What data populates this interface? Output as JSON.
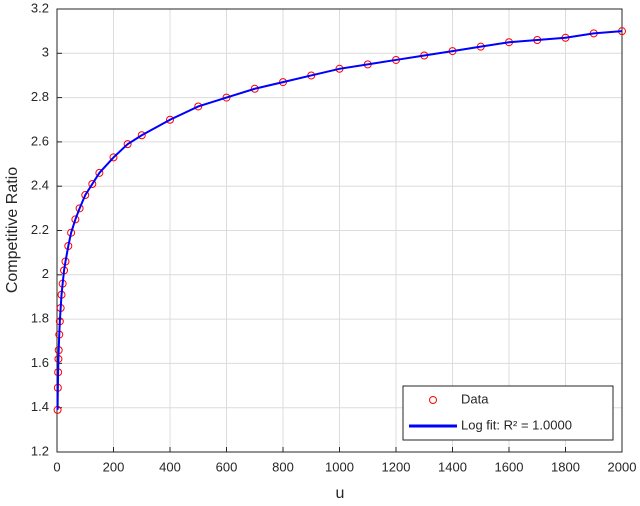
{
  "chart_data": {
    "type": "scatter",
    "xlabel": "u",
    "ylabel": "Competitive Ratio",
    "xlim": [
      0,
      2000
    ],
    "ylim": [
      1.2,
      3.2
    ],
    "xticks": [
      0,
      200,
      400,
      600,
      800,
      1000,
      1200,
      1400,
      1600,
      1800,
      2000
    ],
    "yticks": [
      1.2,
      1.4,
      1.6,
      1.8,
      2,
      2.2,
      2.4,
      2.6,
      2.8,
      3,
      3.2
    ],
    "grid": true,
    "legend": "lower right",
    "series": [
      {
        "name": "Data",
        "kind": "scatter",
        "color": "#ff0000",
        "x": [
          2,
          3,
          4,
          5,
          6,
          8,
          10,
          13,
          16,
          20,
          25,
          30,
          40,
          50,
          65,
          80,
          100,
          125,
          150,
          200,
          250,
          300,
          400,
          500,
          600,
          700,
          800,
          900,
          1000,
          1100,
          1200,
          1300,
          1400,
          1500,
          1600,
          1700,
          1800,
          1900,
          2000
        ],
        "values": [
          1.39,
          1.49,
          1.56,
          1.62,
          1.66,
          1.73,
          1.79,
          1.85,
          1.91,
          1.96,
          2.02,
          2.06,
          2.13,
          2.19,
          2.25,
          2.3,
          2.36,
          2.41,
          2.46,
          2.53,
          2.59,
          2.63,
          2.7,
          2.76,
          2.8,
          2.84,
          2.87,
          2.9,
          2.93,
          2.95,
          2.97,
          2.99,
          3.01,
          3.03,
          3.05,
          3.06,
          3.07,
          3.09,
          3.1
        ]
      },
      {
        "name": "Log fit: R² = 1.0000",
        "kind": "line",
        "color": "#0000ff",
        "x": [
          2,
          3,
          4,
          5,
          6,
          8,
          10,
          13,
          16,
          20,
          25,
          30,
          40,
          50,
          65,
          80,
          100,
          125,
          150,
          200,
          250,
          300,
          400,
          500,
          600,
          700,
          800,
          900,
          1000,
          1100,
          1200,
          1300,
          1400,
          1500,
          1600,
          1700,
          1800,
          1900,
          2000
        ],
        "values": [
          1.39,
          1.49,
          1.56,
          1.62,
          1.66,
          1.73,
          1.79,
          1.85,
          1.91,
          1.96,
          2.02,
          2.06,
          2.13,
          2.19,
          2.25,
          2.3,
          2.36,
          2.41,
          2.46,
          2.53,
          2.59,
          2.63,
          2.7,
          2.76,
          2.8,
          2.84,
          2.87,
          2.9,
          2.93,
          2.95,
          2.97,
          2.99,
          3.01,
          3.03,
          3.05,
          3.06,
          3.07,
          3.09,
          3.1
        ]
      }
    ]
  }
}
